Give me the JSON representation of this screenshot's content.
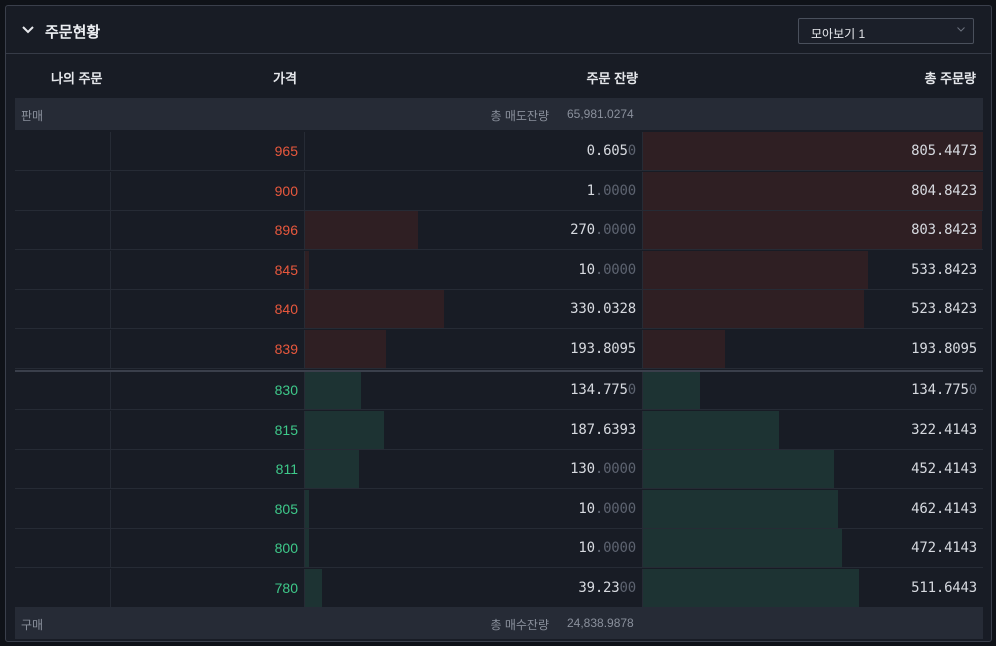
{
  "header": {
    "title": "주문현황",
    "view_select": "모아보기 1"
  },
  "columns": {
    "my_orders": "나의 주문",
    "price": "가격",
    "remaining": "주문 잔량",
    "cumulative": "총 주문량"
  },
  "ask_summary": {
    "side": "판매",
    "label": "총 매도잔량",
    "value": "65,981.0274"
  },
  "bid_summary": {
    "side": "구매",
    "label": "총 매수잔량",
    "value": "24,838.9878"
  },
  "colors": {
    "ask_price": "#e8583d",
    "bid_price": "#3ec98a",
    "ask_bar": "#2f1f23",
    "bid_bar": "#1d3333"
  },
  "asks": [
    {
      "price": "965",
      "qty_main": "0.605",
      "qty_dim": "0",
      "qty_fill": 0.0,
      "total_main": "805.4473",
      "total_dim": "",
      "total_fill": 1.0
    },
    {
      "price": "900",
      "qty_main": "1",
      "qty_dim": ".0000",
      "qty_fill": 0.0,
      "total_main": "804.8423",
      "total_dim": "",
      "total_fill": 0.999
    },
    {
      "price": "896",
      "qty_main": "270",
      "qty_dim": ".0000",
      "qty_fill": 0.335,
      "total_main": "803.8423",
      "total_dim": "",
      "total_fill": 0.998
    },
    {
      "price": "845",
      "qty_main": "10",
      "qty_dim": ".0000",
      "qty_fill": 0.012,
      "total_main": "533.8423",
      "total_dim": "",
      "total_fill": 0.663
    },
    {
      "price": "840",
      "qty_main": "330.0328",
      "qty_dim": "",
      "qty_fill": 0.41,
      "total_main": "523.8423",
      "total_dim": "",
      "total_fill": 0.65
    },
    {
      "price": "839",
      "qty_main": "193.8095",
      "qty_dim": "",
      "qty_fill": 0.241,
      "total_main": "193.8095",
      "total_dim": "",
      "total_fill": 0.241
    }
  ],
  "bids": [
    {
      "price": "830",
      "qty_main": "134.775",
      "qty_dim": "0",
      "qty_fill": 0.167,
      "total_main": "134.775",
      "total_dim": "0",
      "total_fill": 0.167
    },
    {
      "price": "815",
      "qty_main": "187.6393",
      "qty_dim": "",
      "qty_fill": 0.233,
      "total_main": "322.4143",
      "total_dim": "",
      "total_fill": 0.4
    },
    {
      "price": "811",
      "qty_main": "130",
      "qty_dim": ".0000",
      "qty_fill": 0.161,
      "total_main": "452.4143",
      "total_dim": "",
      "total_fill": 0.562
    },
    {
      "price": "805",
      "qty_main": "10",
      "qty_dim": ".0000",
      "qty_fill": 0.012,
      "total_main": "462.4143",
      "total_dim": "",
      "total_fill": 0.574
    },
    {
      "price": "800",
      "qty_main": "10",
      "qty_dim": ".0000",
      "qty_fill": 0.012,
      "total_main": "472.4143",
      "total_dim": "",
      "total_fill": 0.586
    },
    {
      "price": "780",
      "qty_main": "39.23",
      "qty_dim": "00",
      "qty_fill": 0.049,
      "total_main": "511.6443",
      "total_dim": "",
      "total_fill": 0.635
    }
  ]
}
